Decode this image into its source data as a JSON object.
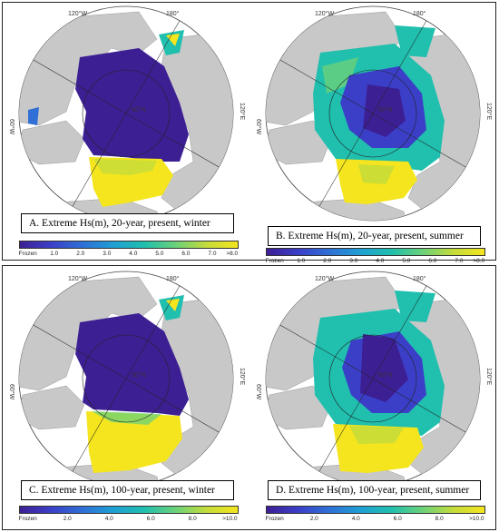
{
  "panels": [
    {
      "id": "A",
      "caption": "A. Extreme Hs(m), 20-year, present, winter",
      "colorbar": [
        "Frozen",
        "1.0",
        "2.0",
        "3.0",
        "4.0",
        "5.0",
        "6.0",
        "7.0",
        ">8.0"
      ],
      "lat_label": "60°N",
      "coords": {
        "top_left": "120°W",
        "top_right": "180°",
        "left": "60°W",
        "right": "120°E"
      }
    },
    {
      "id": "B",
      "caption": "B. Extreme Hs(m), 20-year, present, summer",
      "colorbar": [
        "Frozen",
        "1.0",
        "2.0",
        "3.0",
        "4.0",
        "5.0",
        "6.0",
        "7.0",
        ">8.0"
      ],
      "lat_label": "60°N",
      "coords": {
        "top_left": "120°W",
        "top_right": "180°",
        "left": "60°W",
        "right": "120°E"
      }
    },
    {
      "id": "C",
      "caption": "C. Extreme Hs(m), 100-year, present, winter",
      "colorbar": [
        "Frozen",
        "2.0",
        "4.0",
        "6.0",
        "8.0",
        ">10.0"
      ],
      "lat_label": "60°N",
      "coords": {
        "top_left": "120°W",
        "top_right": "180°",
        "left": "60°W",
        "right": "120°E"
      }
    },
    {
      "id": "D",
      "caption": "D. Extreme Hs(m), 100-year, present, summer",
      "colorbar": [
        "Frozen",
        "2.0",
        "4.0",
        "6.0",
        "8.0",
        ">10.0"
      ],
      "lat_label": "60°N",
      "coords": {
        "top_left": "120°W",
        "top_right": "180°",
        "left": "60°W",
        "right": "120°E"
      }
    }
  ],
  "colors": {
    "frozen": "#3d1f94",
    "land": "#c8c8c8",
    "ocean_bg": "#ffffff",
    "scale": [
      "#3d1f94",
      "#3b3fc8",
      "#2f6fd6",
      "#1e9fd4",
      "#20bfae",
      "#6ad17a",
      "#c4dc3a",
      "#f4e51e"
    ]
  }
}
